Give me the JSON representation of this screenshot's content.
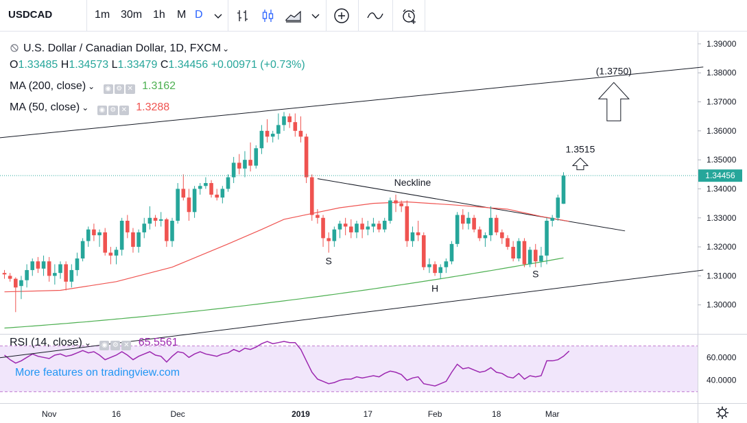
{
  "toolbar": {
    "symbol": "USDCAD",
    "timeframes": [
      "1m",
      "30m",
      "1h",
      "M",
      "D"
    ],
    "active_timeframe": "D",
    "icons": [
      "chevron-down-icon",
      "bars-icon",
      "candles-icon",
      "area-icon",
      "chevron-down-icon",
      "add-compare-icon",
      "indicators-icon",
      "alert-icon"
    ]
  },
  "legend": {
    "title": "U.S. Dollar / Canadian Dollar, 1D, FXCM",
    "ohlc": {
      "o_label": "O",
      "o": "1.33485",
      "h_label": "H",
      "h": "1.34573",
      "l_label": "L",
      "l": "1.33479",
      "c_label": "C",
      "c": "1.34456",
      "change": "+0.00971 (+0.73%)"
    },
    "ma200": {
      "label": "MA (200, close)",
      "value": "1.3162",
      "color": "#4caf50"
    },
    "ma50": {
      "label": "MA (50, close)",
      "value": "1.3288",
      "color": "#ef5350"
    }
  },
  "rsi": {
    "label": "RSI (14, close)",
    "value": "65.5561",
    "color": "#9c27b0"
  },
  "watermark": "More features on tradingview.com",
  "colors": {
    "up": "#26a69a",
    "down": "#ef5350",
    "ma200": "#4caf50",
    "ma50": "#ef5350",
    "rsi": "#9c27b0",
    "price_line": "#26a69a"
  },
  "chart_data": {
    "type": "candlestick",
    "symbol": "USDCAD",
    "interval": "1D",
    "ylim": [
      1.29,
      1.394
    ],
    "price_axis_ticks": [
      "1.39000",
      "1.38000",
      "1.37000",
      "1.36000",
      "1.35000",
      "1.34000",
      "1.33000",
      "1.32000",
      "1.31000",
      "1.30000"
    ],
    "current_price": "1.34456",
    "time_axis_labels": [
      {
        "label": "Nov",
        "idx": 8
      },
      {
        "label": "16",
        "idx": 20
      },
      {
        "label": "Dec",
        "idx": 31
      },
      {
        "label": "2019",
        "idx": 53
      },
      {
        "label": "17",
        "idx": 65
      },
      {
        "label": "Feb",
        "idx": 77
      },
      {
        "label": "18",
        "idx": 88
      },
      {
        "label": "Mar",
        "idx": 98
      }
    ],
    "candles": [
      [
        1.311,
        1.312,
        1.309,
        1.3105
      ],
      [
        1.31,
        1.311,
        1.308,
        1.309
      ],
      [
        1.309,
        1.3095,
        1.2975,
        1.306
      ],
      [
        1.3065,
        1.31,
        1.302,
        1.3085
      ],
      [
        1.3085,
        1.314,
        1.306,
        1.312
      ],
      [
        1.312,
        1.316,
        1.31,
        1.315
      ],
      [
        1.315,
        1.3165,
        1.311,
        1.3125
      ],
      [
        1.3125,
        1.317,
        1.31,
        1.315
      ],
      [
        1.315,
        1.3165,
        1.308,
        1.31
      ],
      [
        1.31,
        1.314,
        1.307,
        1.311
      ],
      [
        1.311,
        1.315,
        1.309,
        1.314
      ],
      [
        1.314,
        1.315,
        1.305,
        1.308
      ],
      [
        1.308,
        1.314,
        1.306,
        1.312
      ],
      [
        1.312,
        1.318,
        1.31,
        1.316
      ],
      [
        1.316,
        1.323,
        1.315,
        1.322
      ],
      [
        1.322,
        1.327,
        1.32,
        1.326
      ],
      [
        1.326,
        1.328,
        1.322,
        1.324
      ],
      [
        1.324,
        1.326,
        1.32,
        1.325
      ],
      [
        1.325,
        1.3265,
        1.317,
        1.318
      ],
      [
        1.318,
        1.32,
        1.314,
        1.317
      ],
      [
        1.317,
        1.32,
        1.314,
        1.319
      ],
      [
        1.319,
        1.33,
        1.317,
        1.329
      ],
      [
        1.329,
        1.331,
        1.323,
        1.325
      ],
      [
        1.325,
        1.3265,
        1.318,
        1.32
      ],
      [
        1.32,
        1.326,
        1.318,
        1.325
      ],
      [
        1.325,
        1.33,
        1.323,
        1.328
      ],
      [
        1.328,
        1.334,
        1.326,
        1.33
      ],
      [
        1.33,
        1.331,
        1.327,
        1.329
      ],
      [
        1.329,
        1.332,
        1.327,
        1.3295
      ],
      [
        1.3295,
        1.33,
        1.32,
        1.322
      ],
      [
        1.322,
        1.33,
        1.32,
        1.329
      ],
      [
        1.329,
        1.342,
        1.328,
        1.34
      ],
      [
        1.34,
        1.345,
        1.336,
        1.337
      ],
      [
        1.337,
        1.34,
        1.329,
        1.332
      ],
      [
        1.332,
        1.341,
        1.33,
        1.34
      ],
      [
        1.34,
        1.342,
        1.338,
        1.341
      ],
      [
        1.341,
        1.344,
        1.34,
        1.342
      ],
      [
        1.342,
        1.343,
        1.337,
        1.338
      ],
      [
        1.338,
        1.34,
        1.336,
        1.337
      ],
      [
        1.337,
        1.341,
        1.335,
        1.34
      ],
      [
        1.34,
        1.345,
        1.339,
        1.344
      ],
      [
        1.344,
        1.351,
        1.342,
        1.349
      ],
      [
        1.349,
        1.352,
        1.345,
        1.347
      ],
      [
        1.347,
        1.353,
        1.344,
        1.35
      ],
      [
        1.35,
        1.356,
        1.346,
        1.348
      ],
      [
        1.348,
        1.355,
        1.347,
        1.354
      ],
      [
        1.354,
        1.362,
        1.352,
        1.36
      ],
      [
        1.36,
        1.364,
        1.356,
        1.358
      ],
      [
        1.358,
        1.36,
        1.356,
        1.359
      ],
      [
        1.359,
        1.366,
        1.357,
        1.362
      ],
      [
        1.362,
        1.3665,
        1.36,
        1.365
      ],
      [
        1.365,
        1.366,
        1.361,
        1.363
      ],
      [
        1.363,
        1.366,
        1.358,
        1.36
      ],
      [
        1.36,
        1.365,
        1.356,
        1.358
      ],
      [
        1.358,
        1.359,
        1.342,
        1.344
      ],
      [
        1.344,
        1.345,
        1.329,
        1.331
      ],
      [
        1.331,
        1.333,
        1.328,
        1.33
      ],
      [
        1.33,
        1.331,
        1.32,
        1.323
      ],
      [
        1.323,
        1.325,
        1.318,
        1.322
      ],
      [
        1.322,
        1.327,
        1.32,
        1.326
      ],
      [
        1.326,
        1.329,
        1.323,
        1.328
      ],
      [
        1.328,
        1.33,
        1.324,
        1.327
      ],
      [
        1.327,
        1.3295,
        1.323,
        1.325
      ],
      [
        1.325,
        1.329,
        1.323,
        1.328
      ],
      [
        1.328,
        1.33,
        1.323,
        1.326
      ],
      [
        1.326,
        1.329,
        1.324,
        1.327
      ],
      [
        1.327,
        1.33,
        1.325,
        1.328
      ],
      [
        1.328,
        1.329,
        1.325,
        1.326
      ],
      [
        1.326,
        1.33,
        1.325,
        1.329
      ],
      [
        1.329,
        1.337,
        1.328,
        1.336
      ],
      [
        1.336,
        1.338,
        1.332,
        1.335
      ],
      [
        1.335,
        1.336,
        1.332,
        1.334
      ],
      [
        1.334,
        1.336,
        1.32,
        1.322
      ],
      [
        1.322,
        1.327,
        1.32,
        1.325
      ],
      [
        1.325,
        1.329,
        1.322,
        1.324
      ],
      [
        1.324,
        1.325,
        1.312,
        1.313
      ],
      [
        1.313,
        1.316,
        1.311,
        1.314
      ],
      [
        1.314,
        1.315,
        1.31,
        1.311
      ],
      [
        1.311,
        1.314,
        1.309,
        1.313
      ],
      [
        1.313,
        1.316,
        1.311,
        1.315
      ],
      [
        1.315,
        1.322,
        1.314,
        1.321
      ],
      [
        1.321,
        1.332,
        1.32,
        1.331
      ],
      [
        1.331,
        1.333,
        1.326,
        1.328
      ],
      [
        1.328,
        1.332,
        1.326,
        1.33
      ],
      [
        1.33,
        1.331,
        1.325,
        1.326
      ],
      [
        1.326,
        1.327,
        1.322,
        1.323
      ],
      [
        1.323,
        1.325,
        1.32,
        1.324
      ],
      [
        1.324,
        1.334,
        1.322,
        1.33
      ],
      [
        1.33,
        1.331,
        1.324,
        1.325
      ],
      [
        1.325,
        1.326,
        1.321,
        1.323
      ],
      [
        1.323,
        1.324,
        1.319,
        1.32
      ],
      [
        1.32,
        1.322,
        1.315,
        1.316
      ],
      [
        1.316,
        1.323,
        1.315,
        1.322
      ],
      [
        1.322,
        1.323,
        1.313,
        1.314
      ],
      [
        1.314,
        1.32,
        1.313,
        1.319
      ],
      [
        1.319,
        1.321,
        1.313,
        1.315
      ],
      [
        1.315,
        1.32,
        1.313,
        1.317
      ],
      [
        1.317,
        1.33,
        1.314,
        1.329
      ],
      [
        1.329,
        1.331,
        1.327,
        1.33
      ],
      [
        1.33,
        1.338,
        1.329,
        1.337
      ],
      [
        1.33485,
        1.34573,
        1.33479,
        1.34456
      ]
    ],
    "ma200": {
      "first_idx": 0,
      "start": 1.292,
      "end": 1.3162
    },
    "ma50": [
      [
        0,
        1.3045
      ],
      [
        10,
        1.305
      ],
      [
        20,
        1.308
      ],
      [
        30,
        1.313
      ],
      [
        40,
        1.321
      ],
      [
        46,
        1.326
      ],
      [
        50,
        1.3295
      ],
      [
        55,
        1.3315
      ],
      [
        60,
        1.3335
      ],
      [
        66,
        1.335
      ],
      [
        72,
        1.3355
      ],
      [
        80,
        1.3345
      ],
      [
        90,
        1.333
      ],
      [
        96,
        1.3305
      ],
      [
        101,
        1.3288
      ]
    ],
    "trendlines": [
      {
        "name": "channel-upper",
        "p1": [
          -2,
          1.3574
        ],
        "p2": [
          125,
          1.382
        ]
      },
      {
        "name": "channel-lower",
        "p1": [
          -2,
          1.2815
        ],
        "p2": [
          125,
          1.312
        ]
      },
      {
        "name": "neckline",
        "p1": [
          56,
          1.3435
        ],
        "p2": [
          111,
          1.3255
        ]
      }
    ],
    "annotations": [
      {
        "text": "Neckline",
        "idx": 73,
        "price": 1.341
      },
      {
        "text": "S",
        "idx": 58,
        "price": 1.314
      },
      {
        "text": "H",
        "idx": 77,
        "price": 1.3045
      },
      {
        "text": "S",
        "idx": 95,
        "price": 1.3095
      },
      {
        "text": "1.3515",
        "idx": 103,
        "price": 1.3525
      },
      {
        "text": "(1.3750)",
        "idx": 109,
        "price": 1.3795
      }
    ],
    "rsi": {
      "label": "RSI (14, close)",
      "last": "65.5561",
      "ylim": [
        20,
        80
      ],
      "ticks": [
        "60.0000",
        "40.0000"
      ],
      "band": [
        30,
        70
      ],
      "values": [
        62,
        58,
        55,
        57,
        60,
        63,
        61,
        60,
        59,
        62,
        63,
        61,
        62,
        64,
        66,
        64,
        65,
        62,
        58,
        60,
        62,
        65,
        62,
        58,
        61,
        63,
        65,
        62,
        61,
        56,
        61,
        65,
        64,
        60,
        63,
        65,
        63,
        62,
        61,
        63,
        64,
        67,
        65,
        68,
        67,
        69,
        72,
        74,
        72,
        73,
        74,
        73,
        73,
        67,
        57,
        47,
        41,
        39,
        37,
        38,
        40,
        41,
        41,
        43,
        42,
        43,
        44,
        43,
        46,
        48,
        47,
        45,
        40,
        42,
        43,
        37,
        36,
        35,
        37,
        39,
        47,
        54,
        50,
        51,
        49,
        47,
        48,
        51,
        47,
        46,
        43,
        42,
        46,
        41,
        44,
        43,
        44,
        57,
        57,
        58,
        61,
        65.5561
      ]
    }
  }
}
